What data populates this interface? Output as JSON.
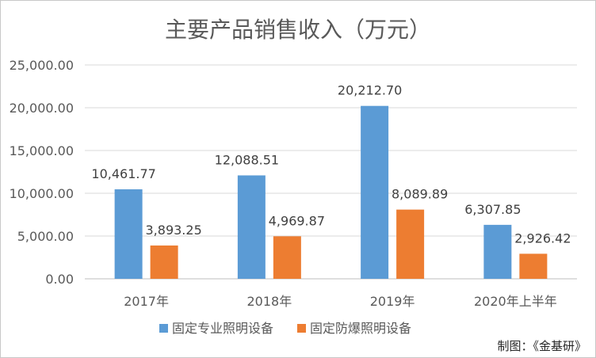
{
  "chart_data": {
    "type": "bar",
    "title": "主要产品销售收入（万元）",
    "categories": [
      "2017年",
      "2018年",
      "2019年",
      "2020年上半年"
    ],
    "series": [
      {
        "name": "固定专业照明设备",
        "color": "#5b9bd5",
        "values": [
          10461.77,
          12088.51,
          20212.7,
          6307.85
        ],
        "labels": [
          "10,461.77",
          "12,088.51",
          "20,212.70",
          "6,307.85"
        ]
      },
      {
        "name": "固定防爆照明设备",
        "color": "#ed7d31",
        "values": [
          3893.25,
          4969.87,
          8089.89,
          2926.42
        ],
        "labels": [
          "3,893.25",
          "4,969.87",
          "8,089.89",
          "2,926.42"
        ]
      }
    ],
    "ylim": [
      0,
      25000
    ],
    "yticks": [
      0,
      5000,
      10000,
      15000,
      20000,
      25000
    ],
    "ytick_labels": [
      "0.00",
      "5,000.00",
      "10,000.00",
      "15,000.00",
      "20,000.00",
      "25,000.00"
    ],
    "grid": true,
    "legend_position": "bottom"
  },
  "credit": "制图：《金基研》"
}
